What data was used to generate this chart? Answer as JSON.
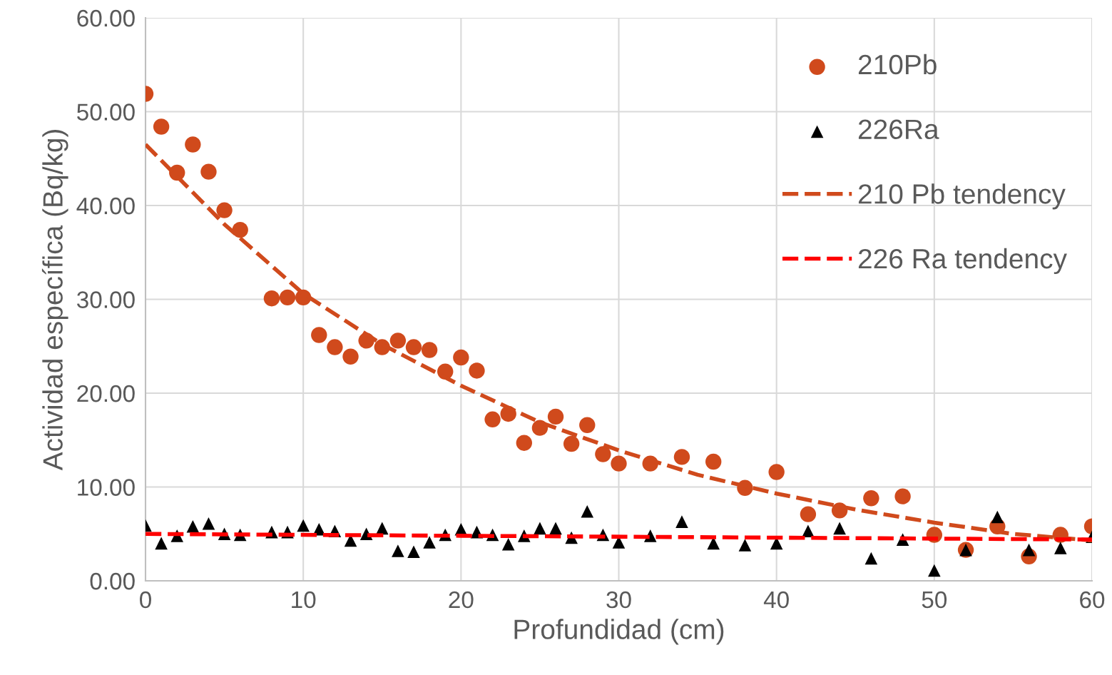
{
  "chart_data": {
    "type": "scatter",
    "xlabel": "Profundidad (cm)",
    "ylabel": "Actividad específica (Bq/kg)",
    "xlim": [
      0,
      60
    ],
    "xticks": [
      0,
      10,
      20,
      30,
      40,
      50,
      60
    ],
    "ylim": [
      0,
      60
    ],
    "yticks": [
      {
        "value": 0,
        "label": "0.00"
      },
      {
        "value": 10,
        "label": "10.00"
      },
      {
        "value": 20,
        "label": "20.00"
      },
      {
        "value": 30,
        "label": "30.00"
      },
      {
        "value": 40,
        "label": "40.00"
      },
      {
        "value": 50,
        "label": "50.00"
      },
      {
        "value": 60,
        "label": "60.00"
      }
    ],
    "grid": true,
    "legend": "top right",
    "series": [
      {
        "name": "210Pb",
        "marker": "circle",
        "color": "#d04a1c",
        "x": [
          0,
          1,
          2,
          3,
          4,
          5,
          6,
          8,
          9,
          10,
          11,
          12,
          13,
          14,
          15,
          16,
          17,
          18,
          19,
          20,
          21,
          22,
          23,
          24,
          25,
          26,
          27,
          28,
          29,
          30,
          32,
          34,
          36,
          38,
          40,
          42,
          44,
          46,
          48,
          50,
          52,
          54,
          56,
          58,
          60
        ],
        "values": [
          51.9,
          48.4,
          43.5,
          46.5,
          43.6,
          39.5,
          37.4,
          30.1,
          30.2,
          30.2,
          26.2,
          24.9,
          23.9,
          25.6,
          24.9,
          25.6,
          24.9,
          24.6,
          22.3,
          23.8,
          22.4,
          17.2,
          17.8,
          14.7,
          16.3,
          17.5,
          14.6,
          16.6,
          13.5,
          12.5,
          12.5,
          13.2,
          12.7,
          9.9,
          11.6,
          7.1,
          7.5,
          8.8,
          9.0,
          4.9,
          3.3,
          5.8,
          2.6,
          4.9,
          5.8
        ]
      },
      {
        "name": "226Ra",
        "marker": "triangle",
        "color": "#000000",
        "x": [
          0,
          1,
          2,
          3,
          4,
          5,
          6,
          8,
          9,
          10,
          11,
          12,
          13,
          14,
          15,
          16,
          17,
          18,
          19,
          20,
          21,
          22,
          23,
          24,
          25,
          26,
          27,
          28,
          29,
          30,
          32,
          34,
          36,
          38,
          40,
          42,
          44,
          46,
          48,
          50,
          52,
          54,
          56,
          58,
          60
        ],
        "values": [
          5.9,
          4.0,
          4.8,
          5.8,
          6.1,
          5.0,
          4.9,
          5.2,
          5.2,
          5.9,
          5.5,
          5.3,
          4.3,
          5.0,
          5.6,
          3.2,
          3.1,
          4.1,
          4.9,
          5.5,
          5.2,
          4.9,
          3.9,
          4.8,
          5.6,
          5.6,
          4.6,
          7.4,
          4.9,
          4.1,
          4.8,
          6.3,
          4.0,
          3.8,
          4.0,
          5.3,
          5.6,
          2.4,
          4.4,
          1.1,
          3.3,
          6.8,
          3.3,
          3.5,
          4.7
        ]
      },
      {
        "name": "210 Pb tendency",
        "type": "line",
        "line_style": "dashed",
        "color": "#d04a1c",
        "x": [
          0,
          5,
          10,
          15,
          20,
          25,
          30,
          35,
          40,
          45,
          50,
          55,
          60
        ],
        "values": [
          46.5,
          38.0,
          30.6,
          25.2,
          20.8,
          16.9,
          13.9,
          11.3,
          9.3,
          7.6,
          6.2,
          5.0,
          4.3
        ]
      },
      {
        "name": "226 Ra tendency",
        "type": "line",
        "line_style": "dashed",
        "color": "#ff0000",
        "x": [
          0,
          20,
          40,
          60
        ],
        "values": [
          5.0,
          4.8,
          4.6,
          4.4
        ]
      }
    ]
  }
}
